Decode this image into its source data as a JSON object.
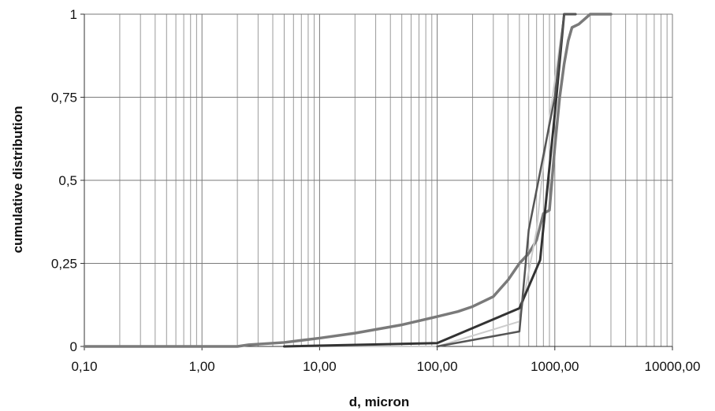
{
  "chart_data": {
    "type": "line",
    "xscale": "log",
    "xlim": [
      0.1,
      10000
    ],
    "ylim": [
      0,
      1
    ],
    "xlabel": "d, micron",
    "ylabel": "cumulative distribution",
    "xticks": [
      {
        "value": 0.1,
        "label": "0,10"
      },
      {
        "value": 1,
        "label": "1,00"
      },
      {
        "value": 10,
        "label": "10,00"
      },
      {
        "value": 100,
        "label": "100,00"
      },
      {
        "value": 1000,
        "label": "1000,00"
      },
      {
        "value": 10000,
        "label": "10000,00"
      }
    ],
    "yticks": [
      {
        "value": 0,
        "label": "0"
      },
      {
        "value": 0.25,
        "label": "0,25"
      },
      {
        "value": 0.5,
        "label": "0,5"
      },
      {
        "value": 0.75,
        "label": "0,75"
      },
      {
        "value": 1,
        "label": "1"
      }
    ],
    "grid": true,
    "legend": "none",
    "series": [
      {
        "color": "#7a7a7a",
        "width": 3.5,
        "points": [
          [
            0.1,
            0
          ],
          [
            2,
            0
          ],
          [
            2.5,
            0.005
          ],
          [
            5,
            0.012
          ],
          [
            10,
            0.025
          ],
          [
            20,
            0.04
          ],
          [
            50,
            0.065
          ],
          [
            100,
            0.09
          ],
          [
            150,
            0.105
          ],
          [
            200,
            0.12
          ],
          [
            300,
            0.15
          ],
          [
            400,
            0.2
          ],
          [
            500,
            0.25
          ],
          [
            600,
            0.28
          ],
          [
            700,
            0.32
          ],
          [
            800,
            0.4
          ],
          [
            900,
            0.41
          ],
          [
            1000,
            0.6
          ],
          [
            1100,
            0.75
          ],
          [
            1200,
            0.85
          ],
          [
            1300,
            0.92
          ],
          [
            1400,
            0.96
          ],
          [
            1600,
            0.97
          ],
          [
            2000,
            1
          ],
          [
            3000,
            1
          ]
        ]
      },
      {
        "color": "#cccccc",
        "width": 2,
        "points": [
          [
            5,
            0
          ],
          [
            100,
            0
          ],
          [
            500,
            0.075
          ],
          [
            700,
            0.35
          ],
          [
            800,
            0.55
          ],
          [
            1000,
            0.8
          ],
          [
            1200,
            1
          ],
          [
            1500,
            1
          ]
        ]
      },
      {
        "color": "#333333",
        "width": 3,
        "points": [
          [
            5,
            0
          ],
          [
            100,
            0.01
          ],
          [
            500,
            0.115
          ],
          [
            750,
            0.26
          ],
          [
            1000,
            0.7
          ],
          [
            1200,
            1
          ],
          [
            1500,
            1
          ]
        ]
      },
      {
        "color": "#555555",
        "width": 2.5,
        "points": [
          [
            100,
            0
          ],
          [
            500,
            0.045
          ],
          [
            600,
            0.35
          ],
          [
            1000,
            0.75
          ],
          [
            1200,
            1
          ],
          [
            1500,
            1
          ]
        ]
      }
    ]
  }
}
